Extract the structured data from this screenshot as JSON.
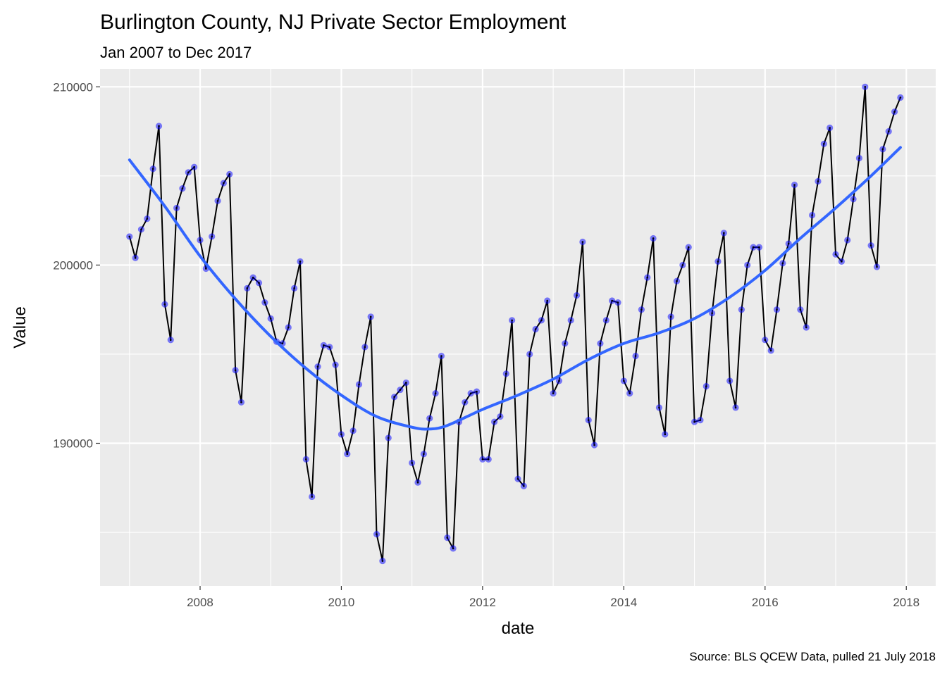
{
  "chart_data": {
    "type": "line",
    "title": "Burlington County, NJ Private Sector Employment",
    "subtitle": "Jan 2007 to Dec 2017",
    "caption": "Source: BLS QCEW Data, pulled 21 July 2018",
    "xlabel": "date",
    "ylabel": "Value",
    "x_ticks": [
      "2008",
      "2010",
      "2012",
      "2014",
      "2016",
      "2018"
    ],
    "y_ticks": [
      "190000",
      "200000",
      "210000"
    ],
    "xlim": [
      "2006-08",
      "2018-06"
    ],
    "ylim": [
      182000,
      211000
    ],
    "grid": true,
    "colors": {
      "panel": "#ebebeb",
      "grid": "#ffffff",
      "line": "#000000",
      "points": "#0000ff",
      "smooth": "#3366ff"
    },
    "series": [
      {
        "x": [
          "2007-01",
          "2007-02",
          "2007-03",
          "2007-04",
          "2007-05",
          "2007-06",
          "2007-07",
          "2007-08",
          "2007-09",
          "2007-10",
          "2007-11",
          "2007-12",
          "2008-01",
          "2008-02",
          "2008-03",
          "2008-04",
          "2008-05",
          "2008-06",
          "2008-07",
          "2008-08",
          "2008-09",
          "2008-10",
          "2008-11",
          "2008-12",
          "2009-01",
          "2009-02",
          "2009-03",
          "2009-04",
          "2009-05",
          "2009-06",
          "2009-07",
          "2009-08",
          "2009-09",
          "2009-10",
          "2009-11",
          "2009-12",
          "2010-01",
          "2010-02",
          "2010-03",
          "2010-04",
          "2010-05",
          "2010-06",
          "2010-07",
          "2010-08",
          "2010-09",
          "2010-10",
          "2010-11",
          "2010-12",
          "2011-01",
          "2011-02",
          "2011-03",
          "2011-04",
          "2011-05",
          "2011-06",
          "2011-07",
          "2011-08",
          "2011-09",
          "2011-10",
          "2011-11",
          "2011-12",
          "2012-01",
          "2012-02",
          "2012-03",
          "2012-04",
          "2012-05",
          "2012-06",
          "2012-07",
          "2012-08",
          "2012-09",
          "2012-10",
          "2012-11",
          "2012-12",
          "2013-01",
          "2013-02",
          "2013-03",
          "2013-04",
          "2013-05",
          "2013-06",
          "2013-07",
          "2013-08",
          "2013-09",
          "2013-10",
          "2013-11",
          "2013-12",
          "2014-01",
          "2014-02",
          "2014-03",
          "2014-04",
          "2014-05",
          "2014-06",
          "2014-07",
          "2014-08",
          "2014-09",
          "2014-10",
          "2014-11",
          "2014-12",
          "2015-01",
          "2015-02",
          "2015-03",
          "2015-04",
          "2015-05",
          "2015-06",
          "2015-07",
          "2015-08",
          "2015-09",
          "2015-10",
          "2015-11",
          "2015-12",
          "2016-01",
          "2016-02",
          "2016-03",
          "2016-04",
          "2016-05",
          "2016-06",
          "2016-07",
          "2016-08",
          "2016-09",
          "2016-10",
          "2016-11",
          "2016-12",
          "2017-01",
          "2017-02",
          "2017-03",
          "2017-04",
          "2017-05",
          "2017-06",
          "2017-07",
          "2017-08",
          "2017-09",
          "2017-10",
          "2017-11",
          "2017-12"
        ],
        "values": [
          201600,
          200400,
          202000,
          202600,
          205400,
          207800,
          197800,
          195800,
          203200,
          204300,
          205200,
          205500,
          201400,
          199800,
          201600,
          203600,
          204600,
          205100,
          194100,
          192300,
          198700,
          199300,
          199000,
          197900,
          197000,
          195700,
          195600,
          196500,
          198700,
          200200,
          189100,
          187000,
          194300,
          195500,
          195400,
          194400,
          190500,
          189400,
          190700,
          193300,
          195400,
          197100,
          184900,
          183400,
          190300,
          192600,
          193000,
          193400,
          188900,
          187800,
          189400,
          191400,
          192800,
          194900,
          184700,
          184100,
          191200,
          192300,
          192800,
          192900,
          189100,
          189100,
          191200,
          191500,
          193900,
          196900,
          188000,
          187600,
          195000,
          196400,
          196900,
          198000,
          192800,
          193500,
          195600,
          196900,
          198300,
          201300,
          191300,
          189900,
          195600,
          196900,
          198000,
          197900,
          193500,
          192800,
          194900,
          197500,
          199300,
          201500,
          192000,
          190500,
          197100,
          199100,
          200000,
          201000,
          191200,
          191300,
          193200,
          197300,
          200200,
          201800,
          193500,
          192000,
          197500,
          200000,
          201000,
          201000,
          195800,
          195200,
          197500,
          200100,
          201200,
          204500,
          197500,
          196500,
          202800,
          204700,
          206800,
          207700,
          200600,
          200200,
          201400,
          203700,
          206000,
          210000,
          201100,
          199900,
          206500,
          207500,
          208600,
          209400
        ]
      },
      {
        "name": "loess",
        "x": [
          "2007-01",
          "2007-07",
          "2008-01",
          "2008-07",
          "2009-01",
          "2009-07",
          "2010-01",
          "2010-07",
          "2011-01",
          "2011-04",
          "2011-07",
          "2012-01",
          "2012-07",
          "2013-01",
          "2013-07",
          "2014-01",
          "2014-07",
          "2015-01",
          "2015-07",
          "2016-01",
          "2016-07",
          "2017-01",
          "2017-07",
          "2017-12"
        ],
        "values": [
          205900,
          203300,
          200500,
          198100,
          196000,
          194200,
          192700,
          191500,
          190900,
          190800,
          191000,
          191900,
          192700,
          193600,
          194700,
          195600,
          196200,
          197000,
          198200,
          199700,
          201500,
          203200,
          205000,
          206600
        ]
      }
    ]
  }
}
